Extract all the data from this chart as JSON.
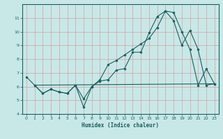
{
  "xlabel": "Humidex (Indice chaleur)",
  "bg_color": "#c8e8e8",
  "grid_color": "#d4a0a0",
  "line_color": "#1a6060",
  "xlim": [
    -0.5,
    23.5
  ],
  "ylim": [
    4,
    12
  ],
  "yticks": [
    4,
    5,
    6,
    7,
    8,
    9,
    10,
    11
  ],
  "xticks": [
    0,
    1,
    2,
    3,
    4,
    5,
    6,
    7,
    8,
    9,
    10,
    11,
    12,
    13,
    14,
    15,
    16,
    17,
    18,
    19,
    20,
    21,
    22,
    23
  ],
  "line1_x": [
    0,
    1,
    2,
    3,
    4,
    5,
    6,
    7,
    8,
    9,
    10,
    11,
    12,
    13,
    14,
    15,
    16,
    17,
    18,
    19,
    20,
    21,
    22,
    23
  ],
  "line1_y": [
    6.7,
    6.1,
    5.5,
    5.8,
    5.6,
    5.5,
    6.1,
    4.5,
    6.0,
    6.4,
    6.5,
    7.2,
    7.3,
    8.5,
    8.5,
    9.9,
    11.1,
    11.5,
    11.4,
    10.0,
    8.7,
    6.1,
    7.3,
    6.2
  ],
  "line2_x": [
    1,
    2,
    3,
    4,
    5,
    6,
    7,
    8,
    9,
    10,
    11,
    12,
    13,
    14,
    15,
    16,
    17,
    18,
    19,
    20,
    21,
    22,
    23
  ],
  "line2_y": [
    6.1,
    5.5,
    5.8,
    5.6,
    5.5,
    6.1,
    5.1,
    6.0,
    6.5,
    7.6,
    7.9,
    8.3,
    8.7,
    9.1,
    9.5,
    10.3,
    11.5,
    10.8,
    9.0,
    10.1,
    8.7,
    6.1,
    6.2
  ],
  "line3_x": [
    1,
    23
  ],
  "line3_y": [
    6.1,
    6.2
  ]
}
